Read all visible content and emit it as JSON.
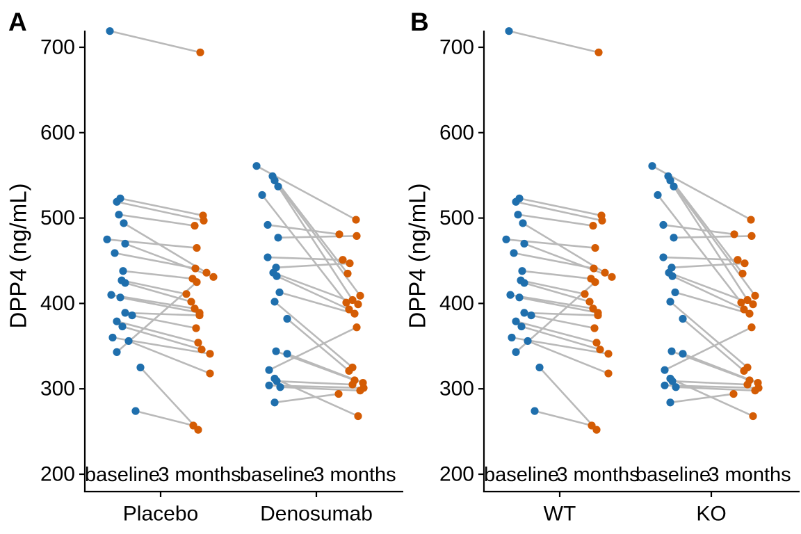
{
  "chart_data": {
    "type": "scatter",
    "subtype": "paired-slope-dot-plot",
    "title": "",
    "ylabel": "DPP4 (ng/mL)",
    "ylim": [
      180,
      735
    ],
    "y_ticks": [
      200,
      300,
      400,
      500,
      600,
      700
    ],
    "x_tick_labels": [
      "baseline",
      "3 months"
    ],
    "grid": "off",
    "legend_position": "none",
    "point_colors": {
      "baseline": "#1f6fad",
      "three_months": "#d45c04"
    },
    "line_color": "#b9b9b9",
    "panels": [
      {
        "label": "A",
        "group_names": [
          "Placebo",
          "Denosumab"
        ]
      },
      {
        "label": "B",
        "group_names": [
          "WT",
          "KO"
        ]
      }
    ],
    "note": "Both panels display the same paired measurements (ng/mL). Each pair is [baseline_value, three_months_value, x_jitter_baseline_px, x_jitter_three_months_px]; gray lines connect paired observations.",
    "group_pairs": [
      [
        [
          719,
          694,
          -18,
          1
        ],
        [
          523,
          503,
          -3,
          5
        ],
        [
          519,
          497,
          -8,
          6
        ],
        [
          504,
          491,
          -5,
          -7
        ],
        [
          494,
          436,
          2,
          10
        ],
        [
          475,
          465,
          -22,
          -4
        ],
        [
          470,
          431,
          4,
          20
        ],
        [
          459,
          441,
          -11,
          -6
        ],
        [
          438,
          429,
          1,
          -10
        ],
        [
          427,
          411,
          -1,
          -19
        ],
        [
          424,
          402,
          4,
          -12
        ],
        [
          410,
          394,
          -16,
          -7
        ],
        [
          407,
          389,
          -3,
          0
        ],
        [
          389,
          386,
          4,
          0
        ],
        [
          386,
          371,
          14,
          -5
        ],
        [
          379,
          354,
          -8,
          -2
        ],
        [
          373,
          346,
          0,
          3
        ],
        [
          360,
          341,
          -14,
          15
        ],
        [
          356,
          318,
          9,
          15
        ],
        [
          343,
          425,
          -8,
          -4
        ],
        [
          325,
          252,
          26,
          -2
        ],
        [
          274,
          257,
          19,
          -9
        ]
      ],
      [
        [
          561,
          498,
          -30,
          2
        ],
        [
          549,
          435,
          -7,
          -10
        ],
        [
          544,
          409,
          -4,
          8
        ],
        [
          537,
          404,
          1,
          -3
        ],
        [
          527,
          401,
          -22,
          -12
        ],
        [
          492,
          481,
          -14,
          -22
        ],
        [
          477,
          479,
          1,
          3
        ],
        [
          454,
          451,
          -14,
          -17
        ],
        [
          442,
          447,
          -2,
          -7
        ],
        [
          436,
          399,
          -6,
          5
        ],
        [
          432,
          393,
          -1,
          -8
        ],
        [
          413,
          388,
          3,
          0
        ],
        [
          402,
          325,
          -4,
          -3
        ],
        [
          382,
          321,
          14,
          -8
        ],
        [
          344,
          310,
          -2,
          0
        ],
        [
          341,
          307,
          14,
          12
        ],
        [
          322,
          372,
          -12,
          3
        ],
        [
          312,
          268,
          -4,
          5
        ],
        [
          309,
          305,
          -1,
          -3
        ],
        [
          304,
          301,
          -12,
          13
        ],
        [
          302,
          298,
          4,
          8
        ],
        [
          284,
          294,
          -4,
          -23
        ]
      ]
    ]
  }
}
